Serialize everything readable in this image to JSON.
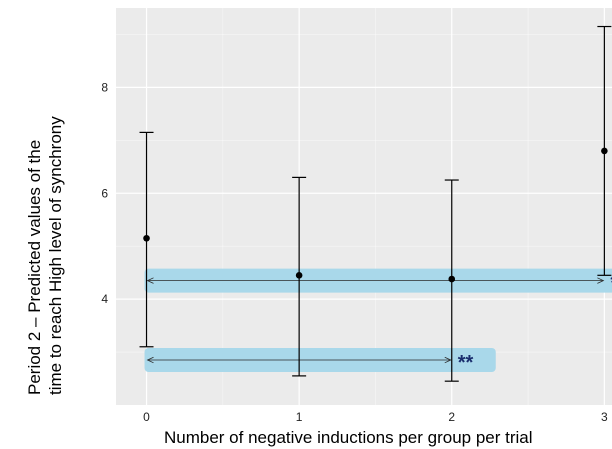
{
  "chart_data": {
    "type": "scatter",
    "subtype": "point-with-error-bars",
    "title": "",
    "xlabel": "Number of negative inductions per group per trial",
    "ylabel_lines": [
      "Period 2 – Predicted values of the",
      "time to reach High level of synchrony"
    ],
    "x_ticks": [
      "0",
      "1",
      "2",
      "3"
    ],
    "y_ticks": [
      "4",
      "6",
      "8"
    ],
    "xlim": [
      -0.2,
      3.05
    ],
    "ylim": [
      2.0,
      9.5
    ],
    "grid": true,
    "legend": "none",
    "points": [
      {
        "x": 0,
        "y": 5.15,
        "lower": 3.1,
        "upper": 7.15
      },
      {
        "x": 1,
        "y": 4.45,
        "lower": 2.55,
        "upper": 6.3
      },
      {
        "x": 2,
        "y": 4.38,
        "lower": 2.45,
        "upper": 6.25
      },
      {
        "x": 3,
        "y": 6.8,
        "lower": 4.45,
        "upper": 9.15
      }
    ],
    "comparisons": [
      {
        "from": 0,
        "to": 2,
        "y": 2.85,
        "label": "**"
      },
      {
        "from": 0,
        "to": 3,
        "y": 4.35,
        "label": "**"
      }
    ],
    "colors": {
      "panel": "#ebebeb",
      "grid": "#ffffff",
      "highlight": "#a9d8ea",
      "point": "#000000",
      "sig": "#1a2e6e"
    }
  }
}
